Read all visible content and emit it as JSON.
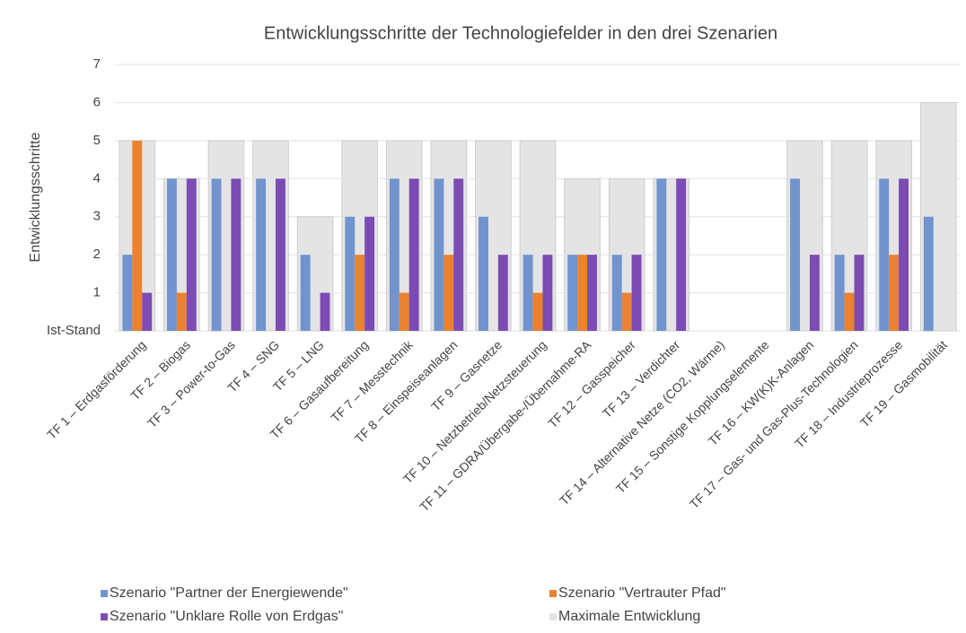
{
  "chart_data": {
    "type": "bar",
    "title": "Entwicklungsschritte der Technologiefelder in den drei Szenarien",
    "y_label": "Entwicklungsschritte",
    "categories": [
      "TF 1 – Erdgasförderung",
      "TF 2 – Biogas",
      "TF 3 – Power-to-Gas",
      "TF 4 – SNG",
      "TF 5 – LNG",
      "TF 6 – Gasaufbereitung",
      "TF 7 – Messtechnik",
      "TF 8 – Einspeiseanlagen",
      "TF 9 – Gasnetze",
      "TF 10 – Netzbetrieb/Netzsteuerung",
      "TF 11 – GDRA/Übergabe-/Übernahme-RA",
      "TF 12 – Gasspeicher",
      "TF 13 – Verdichter",
      "TF 14 – Alternative Netze (CO2, Wärme)",
      "TF 15 – Sonstige Kopplungselemente",
      "TF 16 – KW(K)K-Anlagen",
      "TF 17 – Gas- und Gas-Plus-Technologien",
      "TF 18 – Industrieprozesse",
      "TF 19 – Gasmobilität"
    ],
    "series": [
      {
        "name": "Szenario \"Partner der Energiewende\"",
        "color": "#7194cf",
        "values": [
          2,
          4,
          4,
          4,
          2,
          3,
          4,
          4,
          3,
          2,
          2,
          2,
          4,
          0,
          0,
          4,
          2,
          4,
          3
        ]
      },
      {
        "name": "Szenario \"Vertrauter Pfad\"",
        "color": "#ea822f",
        "values": [
          5,
          1,
          0,
          0,
          0,
          2,
          1,
          2,
          0,
          1,
          2,
          1,
          0,
          0,
          0,
          0,
          1,
          2,
          0
        ]
      },
      {
        "name": "Szenario \"Unklare Rolle von Erdgas\"",
        "color": "#7c4bb4",
        "values": [
          1,
          4,
          4,
          4,
          1,
          3,
          4,
          4,
          2,
          2,
          2,
          2,
          4,
          0,
          0,
          2,
          2,
          4,
          0
        ]
      },
      {
        "name": "Maximale Entwicklung",
        "color": "#e4e4e4",
        "values": [
          5,
          4,
          5,
          5,
          3,
          5,
          5,
          5,
          5,
          5,
          4,
          4,
          4,
          0,
          0,
          5,
          5,
          5,
          6
        ]
      }
    ],
    "ylim": [
      0,
      7
    ],
    "yticks": [
      {
        "value": 0,
        "label": "Ist-Stand"
      },
      1,
      2,
      3,
      4,
      5,
      6,
      7
    ],
    "grid": true
  }
}
